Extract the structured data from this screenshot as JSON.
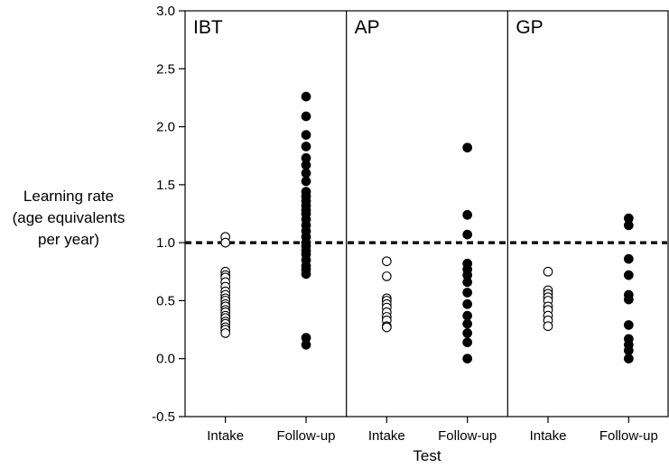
{
  "chart_data": {
    "type": "scatter",
    "ylabel_lines": [
      "Learning rate",
      "(age equivalents",
      "per year)"
    ],
    "xlabel": "Test",
    "ylim": [
      -0.5,
      3.0
    ],
    "yticks": [
      "-0.5",
      "0.0",
      "0.5",
      "1.0",
      "1.5",
      "2.0",
      "2.5",
      "3.0"
    ],
    "reference_line": 1.0,
    "grid": false,
    "categories": [
      "Intake",
      "Follow-up"
    ],
    "panels": [
      {
        "label": "IBT",
        "series": [
          {
            "marker": "open",
            "values": [
              1.05,
              1.0,
              0.75,
              0.72,
              0.7,
              0.66,
              0.62,
              0.58,
              0.55,
              0.52,
              0.5,
              0.47,
              0.45,
              0.42,
              0.4,
              0.37,
              0.35,
              0.32,
              0.3,
              0.27,
              0.25,
              0.22
            ]
          },
          {
            "marker": "filled",
            "values": [
              2.26,
              2.09,
              1.93,
              1.83,
              1.73,
              1.67,
              1.6,
              1.53,
              1.44,
              1.4,
              1.36,
              1.32,
              1.28,
              1.25,
              1.2,
              1.15,
              1.1,
              1.05,
              1.0,
              0.97,
              0.93,
              0.9,
              0.85,
              0.8,
              0.77,
              0.73,
              0.18,
              0.12
            ]
          }
        ]
      },
      {
        "label": "AP",
        "series": [
          {
            "marker": "open",
            "values": [
              0.84,
              0.71,
              0.52,
              0.5,
              0.47,
              0.44,
              0.4,
              0.36,
              0.33,
              0.28,
              0.27
            ]
          },
          {
            "marker": "filled",
            "values": [
              1.82,
              1.24,
              1.07,
              0.82,
              0.77,
              0.72,
              0.66,
              0.57,
              0.47,
              0.37,
              0.3,
              0.22,
              0.14,
              0.0
            ]
          }
        ]
      },
      {
        "label": "GP",
        "series": [
          {
            "marker": "open",
            "values": [
              0.75,
              0.59,
              0.56,
              0.53,
              0.5,
              0.45,
              0.42,
              0.37,
              0.33,
              0.28
            ]
          },
          {
            "marker": "filled",
            "values": [
              1.21,
              1.15,
              0.86,
              0.72,
              0.55,
              0.51,
              0.29,
              0.17,
              0.12,
              0.07,
              0.0
            ]
          }
        ]
      }
    ]
  }
}
